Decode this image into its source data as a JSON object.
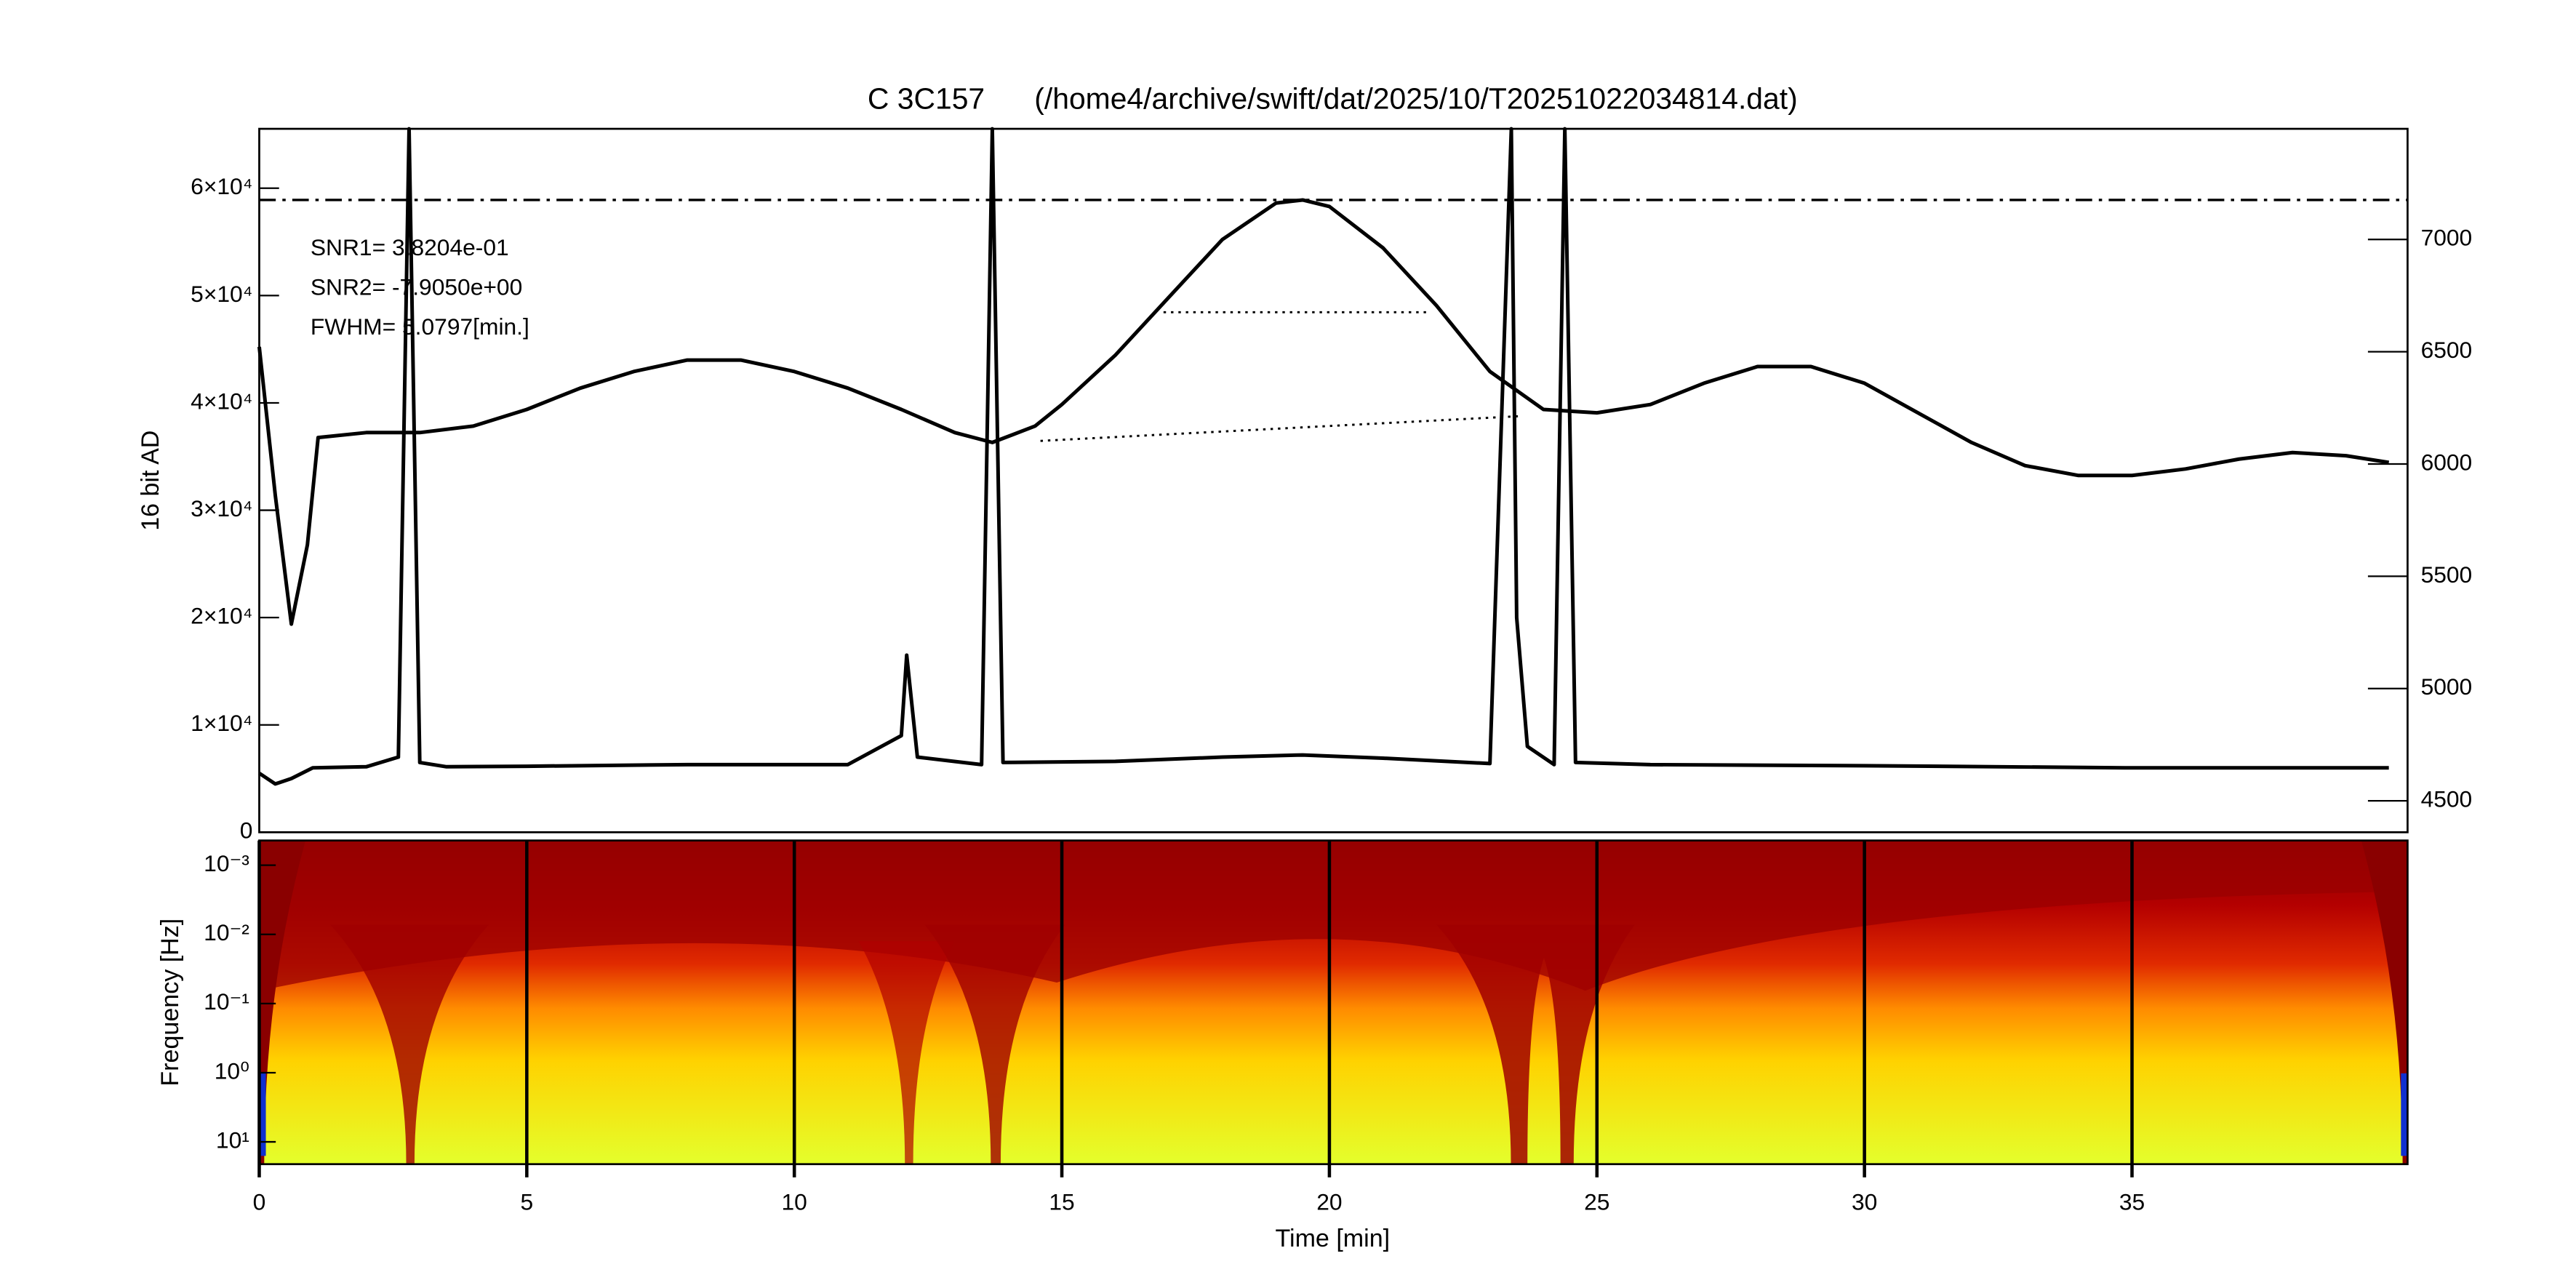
{
  "chart_data": [
    {
      "type": "line",
      "title": "C 3C157      (/home4/archive/swift/dat/2025/10/T20251022034814.dat)",
      "ylabel": "16 bit AD",
      "xlim": [
        0,
        40.15
      ],
      "ylim": [
        0,
        65535
      ],
      "yticks": [
        0,
        {
          "value": 10000,
          "label": "1×10⁴"
        },
        {
          "value": 20000,
          "label": "2×10⁴"
        },
        {
          "value": 30000,
          "label": "3×10⁴"
        },
        {
          "value": 40000,
          "label": "4×10⁴"
        },
        {
          "value": 50000,
          "label": "5×10⁴"
        },
        {
          "value": 60000,
          "label": "6×10⁴"
        }
      ],
      "y2lim": [
        4360,
        7493
      ],
      "y2ticks": [
        4500,
        5000,
        5500,
        6000,
        6500,
        7000
      ],
      "annotations": [
        "SNR1= 3.8204e-01",
        "SNR2= -7.9050e+00",
        "FWHM= 5.0797[min.]"
      ],
      "hline": {
        "value": 7176,
        "axis": "y2"
      },
      "segments": [
        {
          "x": [
            16.9,
            21.85
          ],
          "values": [
            6676,
            6676
          ],
          "axis": "y2"
        },
        {
          "x": [
            14.6,
            23.55
          ],
          "values": [
            6103,
            6213
          ],
          "axis": "y2"
        }
      ],
      "series": [
        {
          "color": "#000000",
          "axis": "y2",
          "x": [
            0,
            0.3,
            0.6,
            0.9,
            1.1,
            2,
            3,
            4,
            5,
            6,
            7,
            8,
            9,
            10,
            11,
            12,
            13,
            13.7,
            14.5,
            15,
            16,
            17,
            18,
            19,
            19.5,
            20,
            21,
            22,
            23,
            24,
            25,
            26,
            27,
            28,
            29,
            30,
            31,
            32,
            33,
            34,
            35,
            36,
            37,
            38,
            39,
            39.8
          ],
          "values": [
            6522,
            5860,
            5287,
            5640,
            6118,
            6140,
            6140,
            6169,
            6243,
            6338,
            6412,
            6463,
            6463,
            6412,
            6338,
            6243,
            6140,
            6096,
            6169,
            6265,
            6485,
            6743,
            7000,
            7162,
            7176,
            7147,
            6963,
            6706,
            6412,
            6243,
            6228,
            6265,
            6360,
            6434,
            6434,
            6360,
            6228,
            6096,
            5993,
            5949,
            5949,
            5978,
            6022,
            6051,
            6037,
            6007
          ]
        },
        {
          "color": "#000000",
          "x": [
            0,
            0.3,
            0.6,
            1,
            2,
            2.6,
            2.8,
            3.0,
            3.5,
            5,
            8,
            11,
            12.0,
            12.1,
            12.3,
            13.5,
            13.7,
            13.9,
            16,
            18,
            19.5,
            21,
            23,
            23.4,
            23.5,
            23.7,
            24.2,
            24.4,
            24.6,
            26,
            30,
            35,
            39.8
          ],
          "values": [
            5500,
            4500,
            5000,
            6000,
            6100,
            7000,
            65535,
            6500,
            6100,
            6150,
            6300,
            6300,
            9000,
            16500,
            7000,
            6300,
            65535,
            6500,
            6600,
            7000,
            7200,
            6900,
            6400,
            65535,
            20000,
            8000,
            6300,
            65535,
            6500,
            6300,
            6200,
            6000,
            6000
          ]
        }
      ]
    },
    {
      "type": "spectrogram",
      "xlabel": "Time [min]",
      "ylabel": "Frequency [Hz]",
      "xlim": [
        0,
        40.15
      ],
      "xticks": [
        0,
        5,
        10,
        15,
        20,
        25,
        30,
        35
      ],
      "log_y": true,
      "ylim": [
        0.00044,
        21
      ],
      "yticks": [
        {
          "value": 0.001,
          "label": "10⁻³"
        },
        {
          "value": 0.01,
          "label": "10⁻²"
        },
        {
          "value": 0.1,
          "label": "10⁻¹"
        },
        {
          "value": 1,
          "label": "10⁰"
        },
        {
          "value": 10,
          "label": "10¹"
        }
      ]
    }
  ]
}
